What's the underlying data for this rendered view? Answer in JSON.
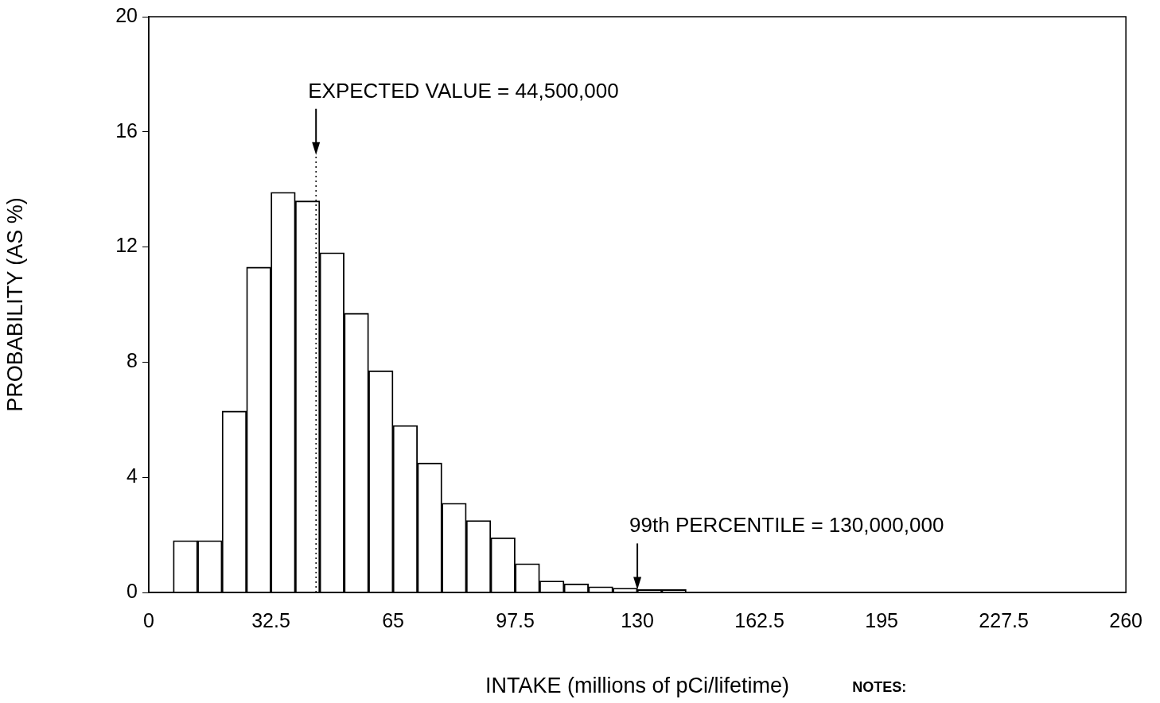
{
  "chart_data": {
    "type": "bar",
    "xlabel": "INTAKE (millions of pCi/lifetime)",
    "ylabel": "PROBABILITY (AS %)",
    "x": [
      9.75,
      16.25,
      22.75,
      29.25,
      35.75,
      42.25,
      48.75,
      55.25,
      61.75,
      68.25,
      74.75,
      81.25,
      87.75,
      94.25,
      100.75,
      107.25,
      113.75,
      120.25,
      126.75,
      133.25,
      139.75
    ],
    "values": [
      1.8,
      1.8,
      6.3,
      11.3,
      13.9,
      13.6,
      11.8,
      9.7,
      7.7,
      5.8,
      4.5,
      3.1,
      2.5,
      1.9,
      1.0,
      0.4,
      0.3,
      0.2,
      0.15,
      0.1,
      0.1
    ],
    "color": "#000000",
    "xlim": [
      0,
      260
    ],
    "xticks": [
      0,
      32.5,
      65,
      97.5,
      130,
      162.5,
      195,
      227.5,
      260
    ],
    "ylim": [
      0,
      20
    ],
    "yticks": [
      0,
      4,
      8,
      12,
      16,
      20
    ],
    "ref_lines": [
      {
        "axis": "x",
        "value": 44.5,
        "line_style": "dotted",
        "color": "#000000"
      }
    ],
    "annotations": [
      {
        "text": "EXPECTED VALUE = 44,500,000",
        "x": 44.5,
        "y": 15.2
      },
      {
        "text": "99th PERCENTILE = 130,000,000",
        "x": 130,
        "y": 0.1
      },
      "NOTES:"
    ],
    "grid": false,
    "legend": false
  }
}
